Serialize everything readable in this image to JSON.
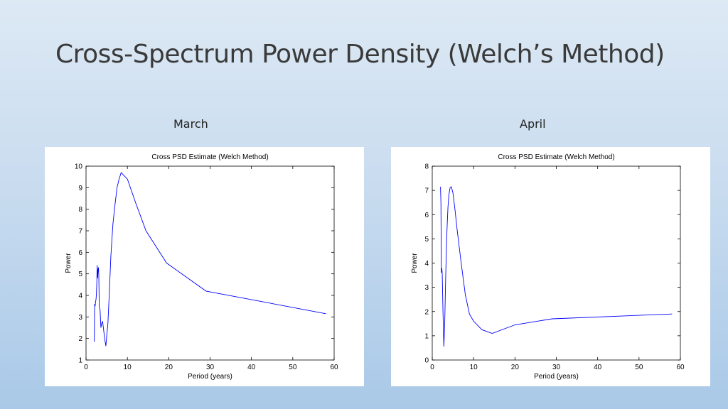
{
  "slide": {
    "title": "Cross-Spectrum Power Density (Welch’s Method)",
    "captions": [
      "March",
      "April"
    ]
  },
  "chart_data": [
    {
      "type": "line",
      "title": "Cross PSD Estimate (Welch Method)",
      "xlabel": "Period (years)",
      "ylabel": "Power",
      "xlim": [
        0,
        60
      ],
      "ylim": [
        1,
        10
      ],
      "xticks": [
        0,
        10,
        20,
        30,
        40,
        50,
        60
      ],
      "yticks": [
        1,
        2,
        3,
        4,
        5,
        6,
        7,
        8,
        9,
        10
      ],
      "line_color": "#0000ff",
      "series": [
        {
          "x": [
            2.0,
            2.1,
            2.2,
            2.3,
            2.4,
            2.5,
            2.6,
            2.7,
            2.8,
            2.9,
            3.0,
            3.1,
            3.2,
            3.4,
            3.6,
            3.8,
            4.0,
            4.2,
            4.5,
            4.8,
            5.0,
            5.3,
            5.6,
            6.0,
            6.5,
            7.0,
            7.5,
            8.0,
            8.5,
            9.0,
            10.0,
            12.0,
            14.5,
            19.5,
            29.0,
            58.0
          ],
          "y": [
            1.85,
            3.6,
            3.5,
            3.7,
            3.8,
            4.0,
            4.5,
            5.4,
            4.8,
            5.2,
            5.3,
            4.9,
            3.5,
            3.3,
            2.5,
            2.7,
            2.8,
            2.5,
            2.0,
            1.65,
            2.1,
            2.7,
            4.0,
            5.8,
            7.3,
            8.2,
            9.0,
            9.4,
            9.7,
            9.6,
            9.4,
            8.3,
            7.0,
            5.5,
            4.2,
            3.15
          ]
        }
      ]
    },
    {
      "type": "line",
      "title": "Cross PSD Estimate (Welch Method)",
      "xlabel": "Period (years)",
      "ylabel": "Power",
      "xlim": [
        0,
        60
      ],
      "ylim": [
        0,
        8
      ],
      "xticks": [
        0,
        10,
        20,
        30,
        40,
        50,
        60
      ],
      "yticks": [
        0,
        1,
        2,
        3,
        4,
        5,
        6,
        7,
        8
      ],
      "line_color": "#0000ff",
      "series": [
        {
          "x": [
            2.0,
            2.1,
            2.2,
            2.3,
            2.4,
            2.6,
            2.8,
            3.0,
            3.2,
            3.4,
            3.6,
            3.8,
            4.0,
            4.3,
            4.6,
            5.0,
            5.5,
            6.0,
            7.0,
            8.0,
            9.0,
            10.0,
            12.0,
            14.5,
            20.0,
            29.0,
            58.0
          ],
          "y": [
            7.15,
            6.5,
            3.6,
            3.8,
            3.6,
            2.0,
            0.55,
            1.5,
            3.0,
            4.5,
            5.5,
            6.3,
            6.8,
            7.1,
            7.15,
            6.9,
            6.2,
            5.4,
            4.0,
            2.7,
            1.9,
            1.6,
            1.25,
            1.1,
            1.45,
            1.7,
            1.9
          ]
        }
      ]
    }
  ]
}
